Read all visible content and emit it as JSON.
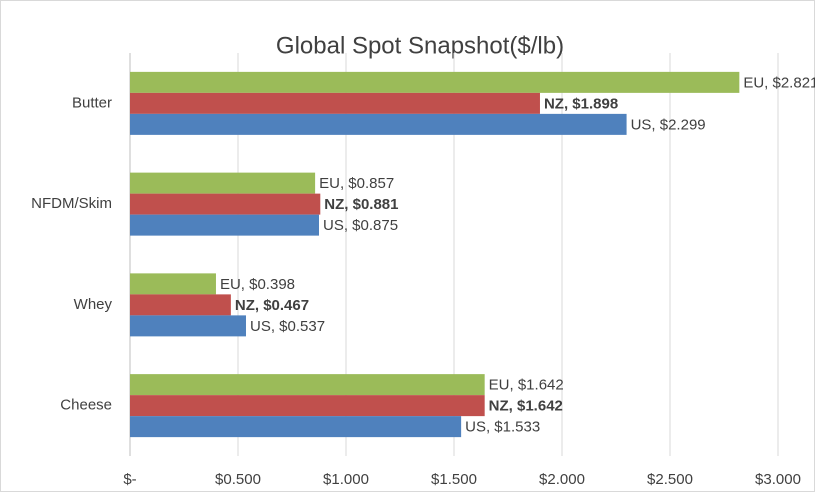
{
  "chart_data": {
    "type": "hbar",
    "title": "Global Spot Snapshot($/lb)",
    "categories": [
      "Butter",
      "NFDM/Skim",
      "Whey",
      "Cheese"
    ],
    "series": [
      {
        "color": "#9bbb59",
        "values": [
          2.821,
          0.857,
          0.398,
          1.642
        ],
        "value_labels": [
          "EU, $2.821",
          "EU, $0.857",
          "EU, $0.398",
          "EU, $1.642"
        ]
      },
      {
        "color": "#c0504d",
        "values": [
          1.898,
          0.881,
          0.467,
          1.642
        ],
        "value_labels": [
          "NZ, $1.898",
          "NZ, $0.881",
          "NZ, $0.467",
          "NZ, $1.642"
        ],
        "bold_labels": true
      },
      {
        "color": "#4f81bd",
        "values": [
          2.299,
          0.875,
          0.537,
          1.533
        ],
        "value_labels": [
          "US, $2.299",
          "US, $0.875",
          "US, $0.537",
          "US, $1.533"
        ]
      }
    ],
    "xlim": [
      0,
      3.0
    ],
    "xticks": [
      {
        "value": 0,
        "label": "$-"
      },
      {
        "value": 0.5,
        "label": "$0.500"
      },
      {
        "value": 1.0,
        "label": "$1.000"
      },
      {
        "value": 1.5,
        "label": "$1.500"
      },
      {
        "value": 2.0,
        "label": "$2.000"
      },
      {
        "value": 2.5,
        "label": "$2.500"
      },
      {
        "value": 3.0,
        "label": "$3.000"
      }
    ],
    "grid": true
  }
}
